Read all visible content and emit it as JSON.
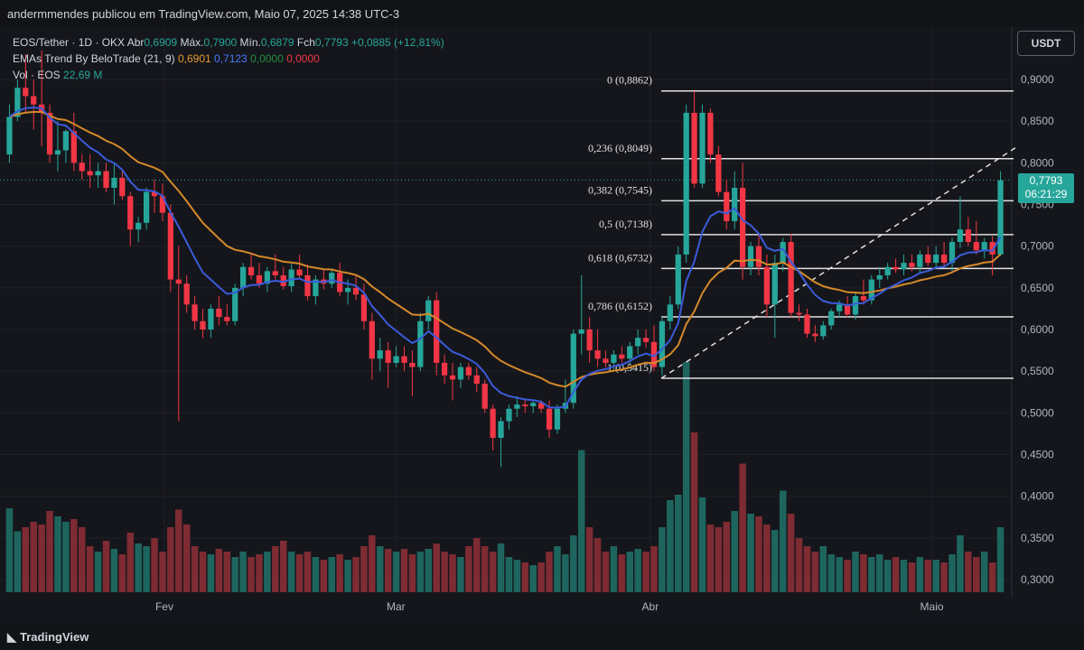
{
  "header": {
    "publisher": "andermmendes publicou em TradingView.com, Maio 07, 2025 14:38 UTC-3"
  },
  "legend": {
    "symbol": "EOS/Tether · 1D · OKX",
    "open_label": "Abr",
    "open": "0,6909",
    "high_label": "Máx.",
    "high": "0,7900",
    "low_label": "Mín.",
    "low": "0,6879",
    "close_label": "Fch",
    "close": "0,7793",
    "change": "+0,0885 (+12,81%)",
    "ema_title": "EMAs Trend By BeloTrade (21, 9)",
    "ema_values": [
      "0,6901",
      "0,7123",
      "0,0000",
      "0,0000"
    ],
    "vol_title": "Vol · EOS",
    "vol_value": "22,69 M"
  },
  "currency_button": "USDT",
  "price_tag": {
    "price": "0,7793",
    "countdown": "06:21:29"
  },
  "footer": {
    "brand": "TradingView"
  },
  "colors": {
    "up": "#26a69a",
    "down": "#f23645",
    "ema_fast": "#3b5bdb",
    "ema_slow": "#d4892a",
    "fib": "#e0e0e0"
  },
  "chart_data": {
    "type": "candlestick",
    "y_axis_ticks": [
      "0,9000",
      "0,8500",
      "0,8000",
      "0,7500",
      "0,7000",
      "0,6500",
      "0,6000",
      "0,5500",
      "0,5000",
      "0,4500",
      "0,4000",
      "0,3500",
      "0,3000"
    ],
    "ylim": [
      0.29,
      0.93
    ],
    "x_axis_labels": [
      "Fev",
      "Mar",
      "Abr",
      "Maio"
    ],
    "fibonacci": [
      {
        "label": "0 (0,8862)",
        "value": 0.8862
      },
      {
        "label": "0,236 (0,8049)",
        "value": 0.8049
      },
      {
        "label": "0,382 (0,7545)",
        "value": 0.7545
      },
      {
        "label": "0,5 (0,7138)",
        "value": 0.7138
      },
      {
        "label": "0,618 (0,6732)",
        "value": 0.6732
      },
      {
        "label": "0,786 (0,6152)",
        "value": 0.6152
      },
      {
        "label": "1 (0,5415)",
        "value": 0.5415
      }
    ],
    "last_price": 0.7793,
    "candles": [
      {
        "o": 0.81,
        "h": 0.87,
        "l": 0.8,
        "c": 0.855,
        "v": 0.062
      },
      {
        "o": 0.855,
        "h": 0.9,
        "l": 0.85,
        "c": 0.89,
        "v": 0.045
      },
      {
        "o": 0.89,
        "h": 0.93,
        "l": 0.86,
        "c": 0.88,
        "v": 0.048
      },
      {
        "o": 0.88,
        "h": 0.9,
        "l": 0.84,
        "c": 0.87,
        "v": 0.052
      },
      {
        "o": 0.87,
        "h": 0.935,
        "l": 0.82,
        "c": 0.86,
        "v": 0.05
      },
      {
        "o": 0.86,
        "h": 0.87,
        "l": 0.8,
        "c": 0.81,
        "v": 0.06
      },
      {
        "o": 0.81,
        "h": 0.85,
        "l": 0.79,
        "c": 0.815,
        "v": 0.056
      },
      {
        "o": 0.815,
        "h": 0.84,
        "l": 0.8,
        "c": 0.838,
        "v": 0.052
      },
      {
        "o": 0.838,
        "h": 0.86,
        "l": 0.79,
        "c": 0.8,
        "v": 0.054
      },
      {
        "o": 0.8,
        "h": 0.81,
        "l": 0.78,
        "c": 0.79,
        "v": 0.048
      },
      {
        "o": 0.79,
        "h": 0.81,
        "l": 0.77,
        "c": 0.785,
        "v": 0.034
      },
      {
        "o": 0.785,
        "h": 0.8,
        "l": 0.77,
        "c": 0.79,
        "v": 0.03
      },
      {
        "o": 0.79,
        "h": 0.8,
        "l": 0.765,
        "c": 0.77,
        "v": 0.038
      },
      {
        "o": 0.77,
        "h": 0.8,
        "l": 0.75,
        "c": 0.782,
        "v": 0.032
      },
      {
        "o": 0.782,
        "h": 0.79,
        "l": 0.755,
        "c": 0.76,
        "v": 0.028
      },
      {
        "o": 0.76,
        "h": 0.765,
        "l": 0.7,
        "c": 0.72,
        "v": 0.044
      },
      {
        "o": 0.72,
        "h": 0.735,
        "l": 0.705,
        "c": 0.728,
        "v": 0.036
      },
      {
        "o": 0.728,
        "h": 0.77,
        "l": 0.72,
        "c": 0.765,
        "v": 0.034
      },
      {
        "o": 0.765,
        "h": 0.78,
        "l": 0.74,
        "c": 0.76,
        "v": 0.04
      },
      {
        "o": 0.76,
        "h": 0.775,
        "l": 0.73,
        "c": 0.74,
        "v": 0.03
      },
      {
        "o": 0.74,
        "h": 0.75,
        "l": 0.645,
        "c": 0.66,
        "v": 0.048
      },
      {
        "o": 0.66,
        "h": 0.7,
        "l": 0.49,
        "c": 0.655,
        "v": 0.061
      },
      {
        "o": 0.655,
        "h": 0.665,
        "l": 0.62,
        "c": 0.63,
        "v": 0.05
      },
      {
        "o": 0.63,
        "h": 0.64,
        "l": 0.6,
        "c": 0.61,
        "v": 0.034
      },
      {
        "o": 0.61,
        "h": 0.625,
        "l": 0.59,
        "c": 0.6,
        "v": 0.03
      },
      {
        "o": 0.6,
        "h": 0.63,
        "l": 0.59,
        "c": 0.625,
        "v": 0.028
      },
      {
        "o": 0.625,
        "h": 0.64,
        "l": 0.605,
        "c": 0.615,
        "v": 0.032
      },
      {
        "o": 0.615,
        "h": 0.63,
        "l": 0.605,
        "c": 0.61,
        "v": 0.03
      },
      {
        "o": 0.61,
        "h": 0.655,
        "l": 0.605,
        "c": 0.65,
        "v": 0.026
      },
      {
        "o": 0.65,
        "h": 0.68,
        "l": 0.64,
        "c": 0.675,
        "v": 0.03
      },
      {
        "o": 0.675,
        "h": 0.69,
        "l": 0.66,
        "c": 0.665,
        "v": 0.026
      },
      {
        "o": 0.665,
        "h": 0.68,
        "l": 0.65,
        "c": 0.655,
        "v": 0.028
      },
      {
        "o": 0.655,
        "h": 0.675,
        "l": 0.645,
        "c": 0.67,
        "v": 0.03
      },
      {
        "o": 0.67,
        "h": 0.69,
        "l": 0.66,
        "c": 0.665,
        "v": 0.034
      },
      {
        "o": 0.665,
        "h": 0.675,
        "l": 0.648,
        "c": 0.652,
        "v": 0.038
      },
      {
        "o": 0.652,
        "h": 0.68,
        "l": 0.645,
        "c": 0.672,
        "v": 0.03
      },
      {
        "o": 0.672,
        "h": 0.69,
        "l": 0.66,
        "c": 0.665,
        "v": 0.028
      },
      {
        "o": 0.665,
        "h": 0.678,
        "l": 0.635,
        "c": 0.64,
        "v": 0.03
      },
      {
        "o": 0.64,
        "h": 0.665,
        "l": 0.63,
        "c": 0.66,
        "v": 0.026
      },
      {
        "o": 0.66,
        "h": 0.672,
        "l": 0.648,
        "c": 0.655,
        "v": 0.024
      },
      {
        "o": 0.655,
        "h": 0.672,
        "l": 0.65,
        "c": 0.668,
        "v": 0.026
      },
      {
        "o": 0.668,
        "h": 0.68,
        "l": 0.64,
        "c": 0.645,
        "v": 0.028
      },
      {
        "o": 0.645,
        "h": 0.66,
        "l": 0.63,
        "c": 0.65,
        "v": 0.024
      },
      {
        "o": 0.65,
        "h": 0.665,
        "l": 0.635,
        "c": 0.642,
        "v": 0.026
      },
      {
        "o": 0.642,
        "h": 0.655,
        "l": 0.6,
        "c": 0.61,
        "v": 0.034
      },
      {
        "o": 0.61,
        "h": 0.62,
        "l": 0.54,
        "c": 0.565,
        "v": 0.042
      },
      {
        "o": 0.565,
        "h": 0.59,
        "l": 0.55,
        "c": 0.575,
        "v": 0.034
      },
      {
        "o": 0.575,
        "h": 0.585,
        "l": 0.53,
        "c": 0.56,
        "v": 0.032
      },
      {
        "o": 0.56,
        "h": 0.58,
        "l": 0.555,
        "c": 0.568,
        "v": 0.03
      },
      {
        "o": 0.568,
        "h": 0.58,
        "l": 0.55,
        "c": 0.56,
        "v": 0.032
      },
      {
        "o": 0.56,
        "h": 0.575,
        "l": 0.52,
        "c": 0.555,
        "v": 0.028
      },
      {
        "o": 0.555,
        "h": 0.62,
        "l": 0.55,
        "c": 0.61,
        "v": 0.03
      },
      {
        "o": 0.61,
        "h": 0.64,
        "l": 0.6,
        "c": 0.635,
        "v": 0.032
      },
      {
        "o": 0.635,
        "h": 0.645,
        "l": 0.545,
        "c": 0.56,
        "v": 0.036
      },
      {
        "o": 0.56,
        "h": 0.57,
        "l": 0.535,
        "c": 0.545,
        "v": 0.03
      },
      {
        "o": 0.545,
        "h": 0.56,
        "l": 0.515,
        "c": 0.54,
        "v": 0.028
      },
      {
        "o": 0.54,
        "h": 0.56,
        "l": 0.53,
        "c": 0.555,
        "v": 0.026
      },
      {
        "o": 0.555,
        "h": 0.56,
        "l": 0.54,
        "c": 0.545,
        "v": 0.034
      },
      {
        "o": 0.545,
        "h": 0.555,
        "l": 0.525,
        "c": 0.535,
        "v": 0.04
      },
      {
        "o": 0.535,
        "h": 0.54,
        "l": 0.5,
        "c": 0.505,
        "v": 0.034
      },
      {
        "o": 0.505,
        "h": 0.51,
        "l": 0.455,
        "c": 0.47,
        "v": 0.03
      },
      {
        "o": 0.47,
        "h": 0.495,
        "l": 0.435,
        "c": 0.49,
        "v": 0.036
      },
      {
        "o": 0.49,
        "h": 0.51,
        "l": 0.48,
        "c": 0.505,
        "v": 0.026
      },
      {
        "o": 0.505,
        "h": 0.52,
        "l": 0.495,
        "c": 0.51,
        "v": 0.024
      },
      {
        "o": 0.51,
        "h": 0.515,
        "l": 0.5,
        "c": 0.508,
        "v": 0.022
      },
      {
        "o": 0.508,
        "h": 0.515,
        "l": 0.5,
        "c": 0.512,
        "v": 0.02
      },
      {
        "o": 0.512,
        "h": 0.515,
        "l": 0.5,
        "c": 0.505,
        "v": 0.022
      },
      {
        "o": 0.505,
        "h": 0.515,
        "l": 0.47,
        "c": 0.48,
        "v": 0.03
      },
      {
        "o": 0.48,
        "h": 0.51,
        "l": 0.475,
        "c": 0.505,
        "v": 0.034
      },
      {
        "o": 0.505,
        "h": 0.54,
        "l": 0.5,
        "c": 0.512,
        "v": 0.028
      },
      {
        "o": 0.512,
        "h": 0.6,
        "l": 0.505,
        "c": 0.595,
        "v": 0.042
      },
      {
        "o": 0.595,
        "h": 0.665,
        "l": 0.57,
        "c": 0.6,
        "v": 0.105
      },
      {
        "o": 0.6,
        "h": 0.615,
        "l": 0.56,
        "c": 0.575,
        "v": 0.048
      },
      {
        "o": 0.575,
        "h": 0.6,
        "l": 0.555,
        "c": 0.565,
        "v": 0.04
      },
      {
        "o": 0.565,
        "h": 0.575,
        "l": 0.555,
        "c": 0.56,
        "v": 0.03
      },
      {
        "o": 0.56,
        "h": 0.575,
        "l": 0.55,
        "c": 0.57,
        "v": 0.034
      },
      {
        "o": 0.57,
        "h": 0.58,
        "l": 0.56,
        "c": 0.565,
        "v": 0.028
      },
      {
        "o": 0.565,
        "h": 0.585,
        "l": 0.558,
        "c": 0.58,
        "v": 0.03
      },
      {
        "o": 0.58,
        "h": 0.6,
        "l": 0.57,
        "c": 0.59,
        "v": 0.032
      },
      {
        "o": 0.59,
        "h": 0.6,
        "l": 0.578,
        "c": 0.585,
        "v": 0.03
      },
      {
        "o": 0.585,
        "h": 0.605,
        "l": 0.55,
        "c": 0.555,
        "v": 0.034
      },
      {
        "o": 0.555,
        "h": 0.615,
        "l": 0.545,
        "c": 0.61,
        "v": 0.048
      },
      {
        "o": 0.61,
        "h": 0.64,
        "l": 0.6,
        "c": 0.63,
        "v": 0.068
      },
      {
        "o": 0.63,
        "h": 0.7,
        "l": 0.625,
        "c": 0.69,
        "v": 0.072
      },
      {
        "o": 0.69,
        "h": 0.87,
        "l": 0.68,
        "c": 0.86,
        "v": 0.17
      },
      {
        "o": 0.86,
        "h": 0.886,
        "l": 0.77,
        "c": 0.775,
        "v": 0.118
      },
      {
        "o": 0.775,
        "h": 0.87,
        "l": 0.77,
        "c": 0.86,
        "v": 0.07
      },
      {
        "o": 0.86,
        "h": 0.865,
        "l": 0.8,
        "c": 0.81,
        "v": 0.05
      },
      {
        "o": 0.81,
        "h": 0.82,
        "l": 0.76,
        "c": 0.765,
        "v": 0.048
      },
      {
        "o": 0.765,
        "h": 0.78,
        "l": 0.72,
        "c": 0.73,
        "v": 0.052
      },
      {
        "o": 0.73,
        "h": 0.79,
        "l": 0.72,
        "c": 0.77,
        "v": 0.06
      },
      {
        "o": 0.77,
        "h": 0.8,
        "l": 0.66,
        "c": 0.675,
        "v": 0.095
      },
      {
        "o": 0.675,
        "h": 0.705,
        "l": 0.665,
        "c": 0.7,
        "v": 0.058
      },
      {
        "o": 0.7,
        "h": 0.715,
        "l": 0.665,
        "c": 0.675,
        "v": 0.056
      },
      {
        "o": 0.675,
        "h": 0.69,
        "l": 0.615,
        "c": 0.63,
        "v": 0.05
      },
      {
        "o": 0.63,
        "h": 0.69,
        "l": 0.59,
        "c": 0.68,
        "v": 0.046
      },
      {
        "o": 0.68,
        "h": 0.71,
        "l": 0.67,
        "c": 0.705,
        "v": 0.075
      },
      {
        "o": 0.705,
        "h": 0.715,
        "l": 0.615,
        "c": 0.62,
        "v": 0.058
      },
      {
        "o": 0.62,
        "h": 0.63,
        "l": 0.61,
        "c": 0.618,
        "v": 0.04
      },
      {
        "o": 0.618,
        "h": 0.625,
        "l": 0.59,
        "c": 0.595,
        "v": 0.034
      },
      {
        "o": 0.595,
        "h": 0.605,
        "l": 0.585,
        "c": 0.592,
        "v": 0.03
      },
      {
        "o": 0.592,
        "h": 0.61,
        "l": 0.588,
        "c": 0.605,
        "v": 0.034
      },
      {
        "o": 0.605,
        "h": 0.625,
        "l": 0.6,
        "c": 0.622,
        "v": 0.028
      },
      {
        "o": 0.622,
        "h": 0.635,
        "l": 0.615,
        "c": 0.63,
        "v": 0.026
      },
      {
        "o": 0.63,
        "h": 0.64,
        "l": 0.615,
        "c": 0.618,
        "v": 0.024
      },
      {
        "o": 0.618,
        "h": 0.645,
        "l": 0.612,
        "c": 0.64,
        "v": 0.03
      },
      {
        "o": 0.64,
        "h": 0.66,
        "l": 0.63,
        "c": 0.635,
        "v": 0.028
      },
      {
        "o": 0.635,
        "h": 0.665,
        "l": 0.63,
        "c": 0.66,
        "v": 0.026
      },
      {
        "o": 0.66,
        "h": 0.675,
        "l": 0.65,
        "c": 0.665,
        "v": 0.028
      },
      {
        "o": 0.665,
        "h": 0.68,
        "l": 0.66,
        "c": 0.675,
        "v": 0.024
      },
      {
        "o": 0.675,
        "h": 0.685,
        "l": 0.668,
        "c": 0.672,
        "v": 0.026
      },
      {
        "o": 0.672,
        "h": 0.69,
        "l": 0.665,
        "c": 0.68,
        "v": 0.024
      },
      {
        "o": 0.68,
        "h": 0.69,
        "l": 0.67,
        "c": 0.675,
        "v": 0.022
      },
      {
        "o": 0.675,
        "h": 0.695,
        "l": 0.668,
        "c": 0.69,
        "v": 0.026
      },
      {
        "o": 0.69,
        "h": 0.7,
        "l": 0.676,
        "c": 0.68,
        "v": 0.024
      },
      {
        "o": 0.68,
        "h": 0.7,
        "l": 0.675,
        "c": 0.69,
        "v": 0.024
      },
      {
        "o": 0.69,
        "h": 0.705,
        "l": 0.675,
        "c": 0.68,
        "v": 0.022
      },
      {
        "o": 0.68,
        "h": 0.71,
        "l": 0.67,
        "c": 0.705,
        "v": 0.028
      },
      {
        "o": 0.705,
        "h": 0.76,
        "l": 0.698,
        "c": 0.72,
        "v": 0.042
      },
      {
        "o": 0.72,
        "h": 0.735,
        "l": 0.7,
        "c": 0.705,
        "v": 0.03
      },
      {
        "o": 0.705,
        "h": 0.73,
        "l": 0.69,
        "c": 0.695,
        "v": 0.026
      },
      {
        "o": 0.695,
        "h": 0.71,
        "l": 0.685,
        "c": 0.705,
        "v": 0.03
      },
      {
        "o": 0.705,
        "h": 0.712,
        "l": 0.665,
        "c": 0.69,
        "v": 0.022
      },
      {
        "o": 0.69,
        "h": 0.79,
        "l": 0.688,
        "c": 0.779,
        "v": 0.048
      }
    ]
  }
}
